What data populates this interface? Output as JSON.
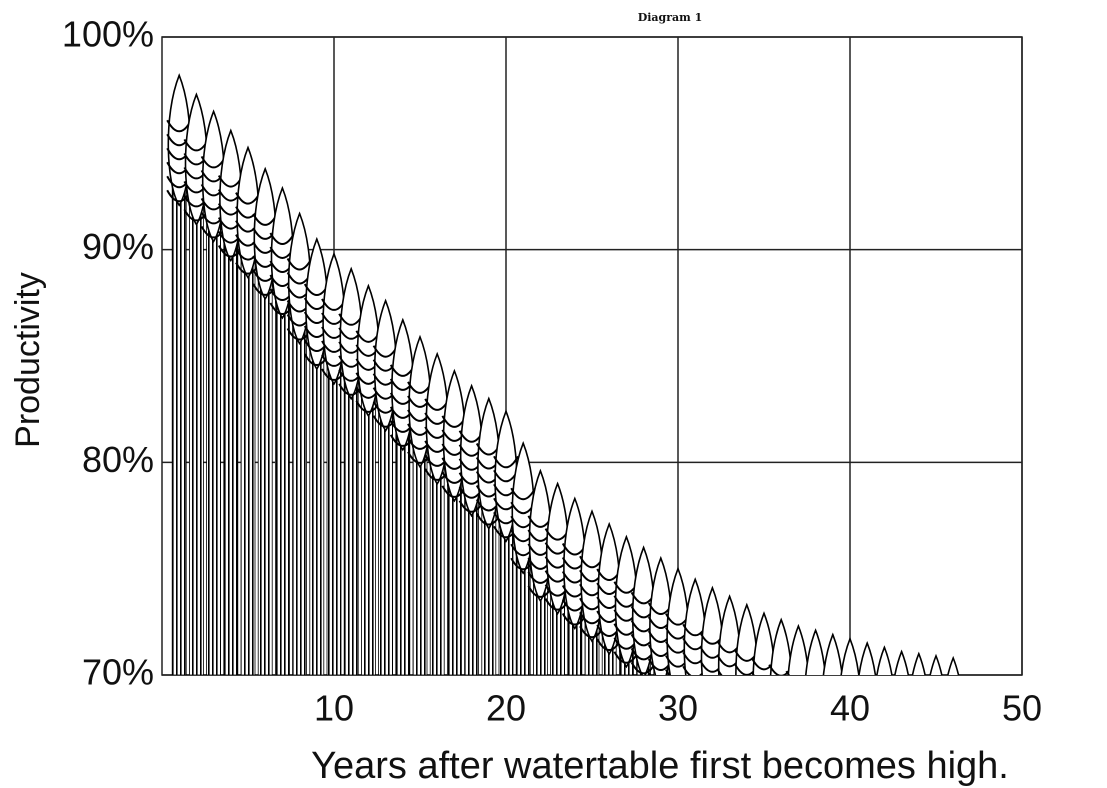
{
  "chart_data": {
    "type": "bar",
    "title": "Diagram 1",
    "x_label": "Years after watertable first becomes high.",
    "y_label": "Productivity",
    "x": [
      1,
      2,
      3,
      4,
      5,
      6,
      7,
      8,
      9,
      10,
      11,
      12,
      13,
      14,
      15,
      16,
      17,
      18,
      19,
      20,
      21,
      22,
      23,
      24,
      25,
      26,
      27,
      28,
      29,
      30,
      31,
      32,
      33,
      34,
      35,
      36,
      37,
      38,
      39,
      40,
      41,
      42,
      43,
      44,
      45,
      46
    ],
    "values": [
      98.2,
      97.3,
      96.5,
      95.6,
      94.8,
      93.8,
      92.9,
      91.7,
      90.5,
      89.8,
      89.1,
      88.3,
      87.6,
      86.7,
      85.9,
      85.1,
      84.3,
      83.6,
      83.0,
      82.4,
      80.9,
      79.6,
      79.0,
      78.3,
      77.7,
      77.1,
      76.5,
      76.0,
      75.5,
      75.0,
      74.5,
      74.1,
      73.7,
      73.3,
      72.9,
      72.6,
      72.3,
      72.1,
      71.9,
      71.7,
      71.5,
      71.3,
      71.1,
      71.0,
      70.9,
      70.8
    ],
    "color": "#000000",
    "xlim": [
      0,
      50
    ],
    "xticks": [
      10,
      20,
      30,
      40,
      50
    ],
    "ylim": [
      70,
      100
    ],
    "yticks": [
      {
        "value": 70,
        "label": "70%"
      },
      {
        "value": 80,
        "label": "80%"
      },
      {
        "value": 90,
        "label": "90%"
      },
      {
        "value": 100,
        "label": "100%"
      }
    ],
    "grid": true
  }
}
